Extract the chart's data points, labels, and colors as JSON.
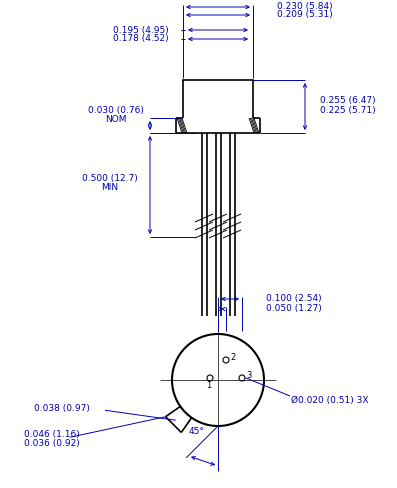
{
  "bg_color": "#ffffff",
  "line_color": "#000000",
  "dim_color": "#0000b0",
  "text_color": "#0000b0",
  "fig_width": 3.97,
  "fig_height": 4.88,
  "dpi": 100,
  "labels": {
    "top_width1": "0.230 (5.84)",
    "top_width2": "0.209 (5.31)",
    "body_width1": "0.195 (4.95)",
    "body_width2": "0.178 (4.52)",
    "flange_height1": "0.030 (0.76)",
    "flange_height_nom": "NOM",
    "lead_length1": "0.500 (12.7)",
    "lead_length_min": "MIN",
    "right_height1": "0.255 (6.47)",
    "right_height2": "0.225 (5.71)",
    "bot_span1": "0.100 (2.54)",
    "bot_span2": "0.050 (1.27)",
    "tab_width1": "0.038 (0.97)",
    "tab_width2": "0.046 (1.16)",
    "tab_width3": "0.036 (0.92)",
    "angle": "45°",
    "pin_dia": "Ø0.020 (0.51) 3X"
  }
}
